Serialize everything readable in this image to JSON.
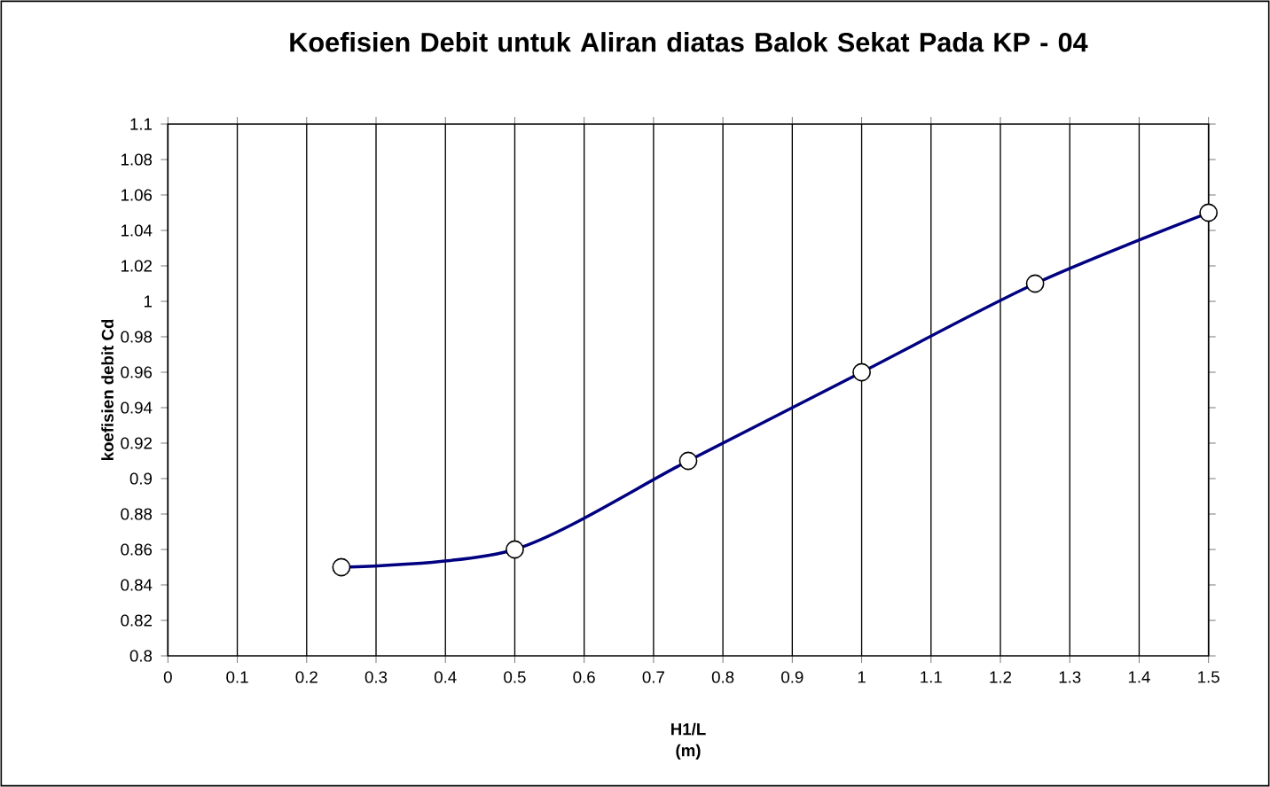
{
  "chart_data": {
    "type": "line",
    "title": "Koefisien Debit untuk Aliran diatas Balok Sekat Pada KP - 04",
    "xlabel": "H1/L (m)",
    "ylabel": "koefisien debit Cd",
    "x": [
      0.25,
      0.5,
      0.75,
      1,
      1.25,
      1.5
    ],
    "series": [
      {
        "color": "#000080",
        "values": [
          0.85,
          0.86,
          0.91,
          0.96,
          1.01,
          1.05
        ]
      }
    ],
    "xlim": [
      0,
      1.5
    ],
    "xticks": [
      0,
      0.1,
      0.2,
      0.3,
      0.4,
      0.5,
      0.6,
      0.7,
      0.8,
      0.9,
      1,
      1.1,
      1.2,
      1.3,
      1.4,
      1.5
    ],
    "ylim": [
      0.8,
      1.1
    ],
    "yticks": [
      0.8,
      0.82,
      0.84,
      0.86,
      0.88,
      0.9,
      0.92,
      0.94,
      0.96,
      0.98,
      1,
      1.02,
      1.04,
      1.06,
      1.08,
      1.1
    ],
    "grid": "x",
    "marker": "circle",
    "line_style": "solid"
  }
}
